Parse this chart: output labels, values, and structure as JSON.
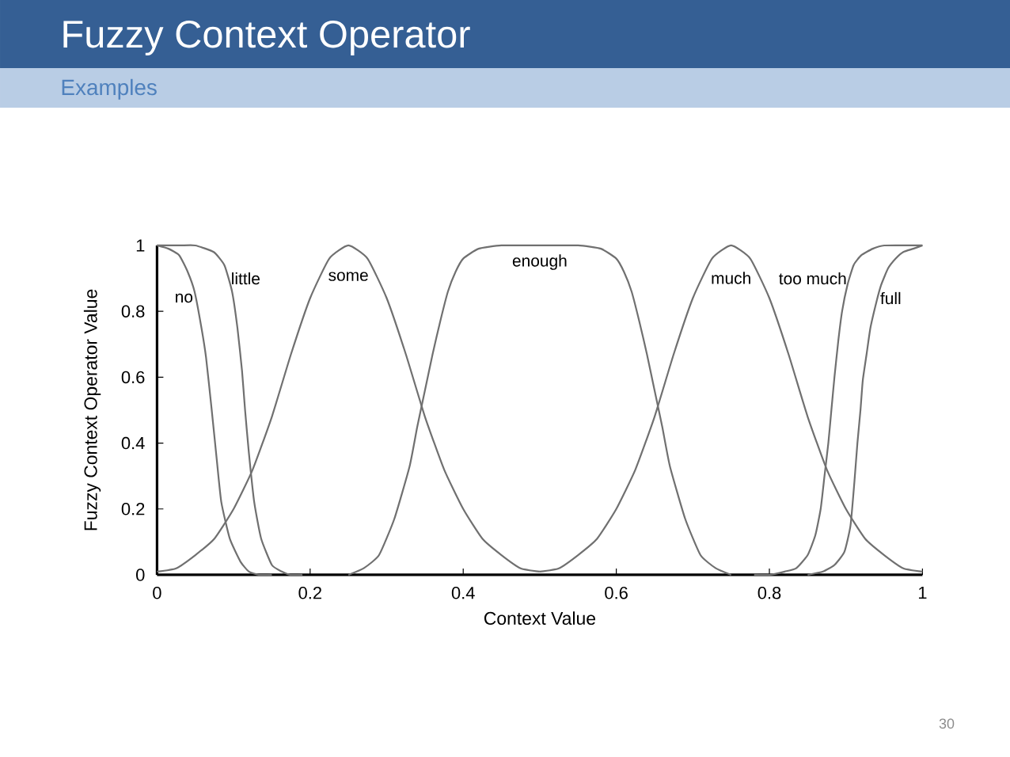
{
  "chart_data": {
    "type": "line",
    "title": "Fuzzy Context Operator",
    "subtitle": "Examples",
    "xlabel": "Context Value",
    "ylabel": "Fuzzy Context Operator Value",
    "annotations": [
      "30"
    ],
    "xlim": [
      0,
      1
    ],
    "ylim": [
      0,
      1
    ],
    "xticks": [
      0,
      0.2,
      0.4,
      0.6,
      0.8,
      1
    ],
    "yticks": [
      0,
      0.2,
      0.4,
      0.6,
      0.8,
      1
    ],
    "marker": "none",
    "line_style": "solid",
    "series": [
      {
        "name": "no",
        "color": "#707070",
        "x": [
          0,
          0.015,
          0.029,
          0.04,
          0.049,
          0.058,
          0.064,
          0.071,
          0.078,
          0.084,
          0.095,
          0.109,
          0.12,
          0.133,
          0.15
        ],
        "values": [
          1,
          0.99,
          0.97,
          0.92,
          0.86,
          0.75,
          0.66,
          0.51,
          0.35,
          0.22,
          0.11,
          0.04,
          0.01,
          0,
          0
        ]
      },
      {
        "name": "little",
        "color": "#707070",
        "x": [
          0,
          0.03,
          0.05,
          0.074,
          0.088,
          0.098,
          0.105,
          0.111,
          0.115,
          0.12,
          0.127,
          0.136,
          0.15,
          0.163,
          0.174,
          0.19
        ],
        "values": [
          1,
          1,
          1,
          0.98,
          0.94,
          0.86,
          0.75,
          0.62,
          0.5,
          0.37,
          0.22,
          0.11,
          0.03,
          0.01,
          0,
          0
        ]
      },
      {
        "name": "some",
        "color": "#707070",
        "x": [
          0,
          0.025,
          0.05,
          0.075,
          0.1,
          0.125,
          0.15,
          0.175,
          0.2,
          0.225,
          0.25,
          0.275,
          0.3,
          0.325,
          0.35,
          0.375,
          0.4,
          0.425,
          0.45,
          0.475,
          0.5
        ],
        "values": [
          0.01,
          0.02,
          0.06,
          0.11,
          0.2,
          0.32,
          0.48,
          0.67,
          0.84,
          0.96,
          1,
          0.96,
          0.84,
          0.67,
          0.48,
          0.32,
          0.2,
          0.11,
          0.06,
          0.02,
          0.01
        ]
      },
      {
        "name": "enough",
        "color": "#707070",
        "x": [
          0.25,
          0.27,
          0.29,
          0.31,
          0.33,
          0.34,
          0.35,
          0.36,
          0.37,
          0.38,
          0.39,
          0.4,
          0.42,
          0.45,
          0.5,
          0.55,
          0.58,
          0.6,
          0.61,
          0.62,
          0.63,
          0.64,
          0.65,
          0.66,
          0.67,
          0.69,
          0.71,
          0.73,
          0.75
        ],
        "values": [
          0,
          0.02,
          0.06,
          0.17,
          0.33,
          0.45,
          0.56,
          0.67,
          0.77,
          0.86,
          0.92,
          0.96,
          0.99,
          1,
          1,
          1,
          0.99,
          0.96,
          0.92,
          0.86,
          0.77,
          0.67,
          0.56,
          0.45,
          0.33,
          0.17,
          0.06,
          0.02,
          0
        ]
      },
      {
        "name": "much",
        "color": "#707070",
        "x": [
          0.5,
          0.525,
          0.55,
          0.575,
          0.6,
          0.625,
          0.65,
          0.675,
          0.7,
          0.725,
          0.75,
          0.775,
          0.8,
          0.825,
          0.85,
          0.875,
          0.9,
          0.925,
          0.95,
          0.975,
          1
        ],
        "values": [
          0.01,
          0.02,
          0.06,
          0.11,
          0.2,
          0.32,
          0.48,
          0.67,
          0.84,
          0.96,
          1,
          0.96,
          0.84,
          0.67,
          0.48,
          0.32,
          0.2,
          0.11,
          0.06,
          0.02,
          0.01
        ]
      },
      {
        "name": "too much",
        "color": "#707070",
        "x": [
          0.78,
          0.8,
          0.82,
          0.835,
          0.85,
          0.86,
          0.867,
          0.872,
          0.877,
          0.881,
          0.885,
          0.89,
          0.895,
          0.902,
          0.91,
          0.92,
          0.935,
          0.95,
          1
        ],
        "values": [
          0,
          0,
          0.01,
          0.02,
          0.06,
          0.12,
          0.2,
          0.3,
          0.4,
          0.5,
          0.6,
          0.71,
          0.8,
          0.88,
          0.94,
          0.97,
          0.99,
          1,
          1
        ]
      },
      {
        "name": "full",
        "color": "#707070",
        "x": [
          0.85,
          0.87,
          0.885,
          0.898,
          0.906,
          0.911,
          0.915,
          0.919,
          0.922,
          0.927,
          0.932,
          0.94,
          0.946,
          0.955,
          0.965,
          0.975,
          0.988,
          1
        ],
        "values": [
          0,
          0.01,
          0.03,
          0.07,
          0.15,
          0.28,
          0.4,
          0.5,
          0.59,
          0.67,
          0.75,
          0.83,
          0.88,
          0.93,
          0.96,
          0.98,
          0.99,
          1
        ]
      }
    ]
  }
}
